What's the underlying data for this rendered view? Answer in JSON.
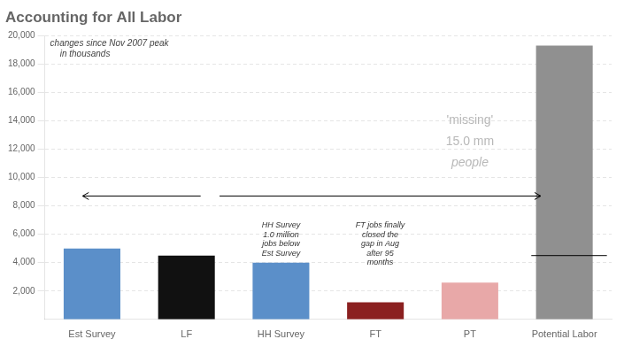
{
  "chart_data": {
    "type": "bar",
    "title": "Accounting for All Labor",
    "subtitle": "changes since Nov 2007 peak\n    in thousands",
    "categories": [
      "Est Survey",
      "LF",
      "HH Survey",
      "FT",
      "PT",
      "Potential Labor"
    ],
    "values": [
      5000,
      4500,
      4000,
      1200,
      2600,
      19300
    ],
    "colors": [
      "#5b8fc9",
      "#111111",
      "#5b8fc9",
      "#8b2020",
      "#e8a8a8",
      "#909090"
    ],
    "ylim": [
      0,
      20000
    ],
    "yticks": [
      {
        "value": 2000,
        "label": "2,000"
      },
      {
        "value": 4000,
        "label": "4,000"
      },
      {
        "value": 6000,
        "label": "6,000"
      },
      {
        "value": 8000,
        "label": "8,000"
      },
      {
        "value": 10000,
        "label": "10,000"
      },
      {
        "value": 12000,
        "label": "12,000"
      },
      {
        "value": 14000,
        "label": "14,000"
      },
      {
        "value": 16000,
        "label": "16,000"
      },
      {
        "value": 18000,
        "label": "18,000"
      },
      {
        "value": 20000,
        "label": "20,000"
      }
    ],
    "grid": true,
    "reference_line": 4500,
    "annotations": [
      "'missing'",
      "15.0 mm",
      "people",
      "HH Survey\n1.0 million\njobs below\nEst Survey",
      "FT jobs finally\nclosed the\ngap in Aug\nafter 95\nmonths"
    ]
  }
}
